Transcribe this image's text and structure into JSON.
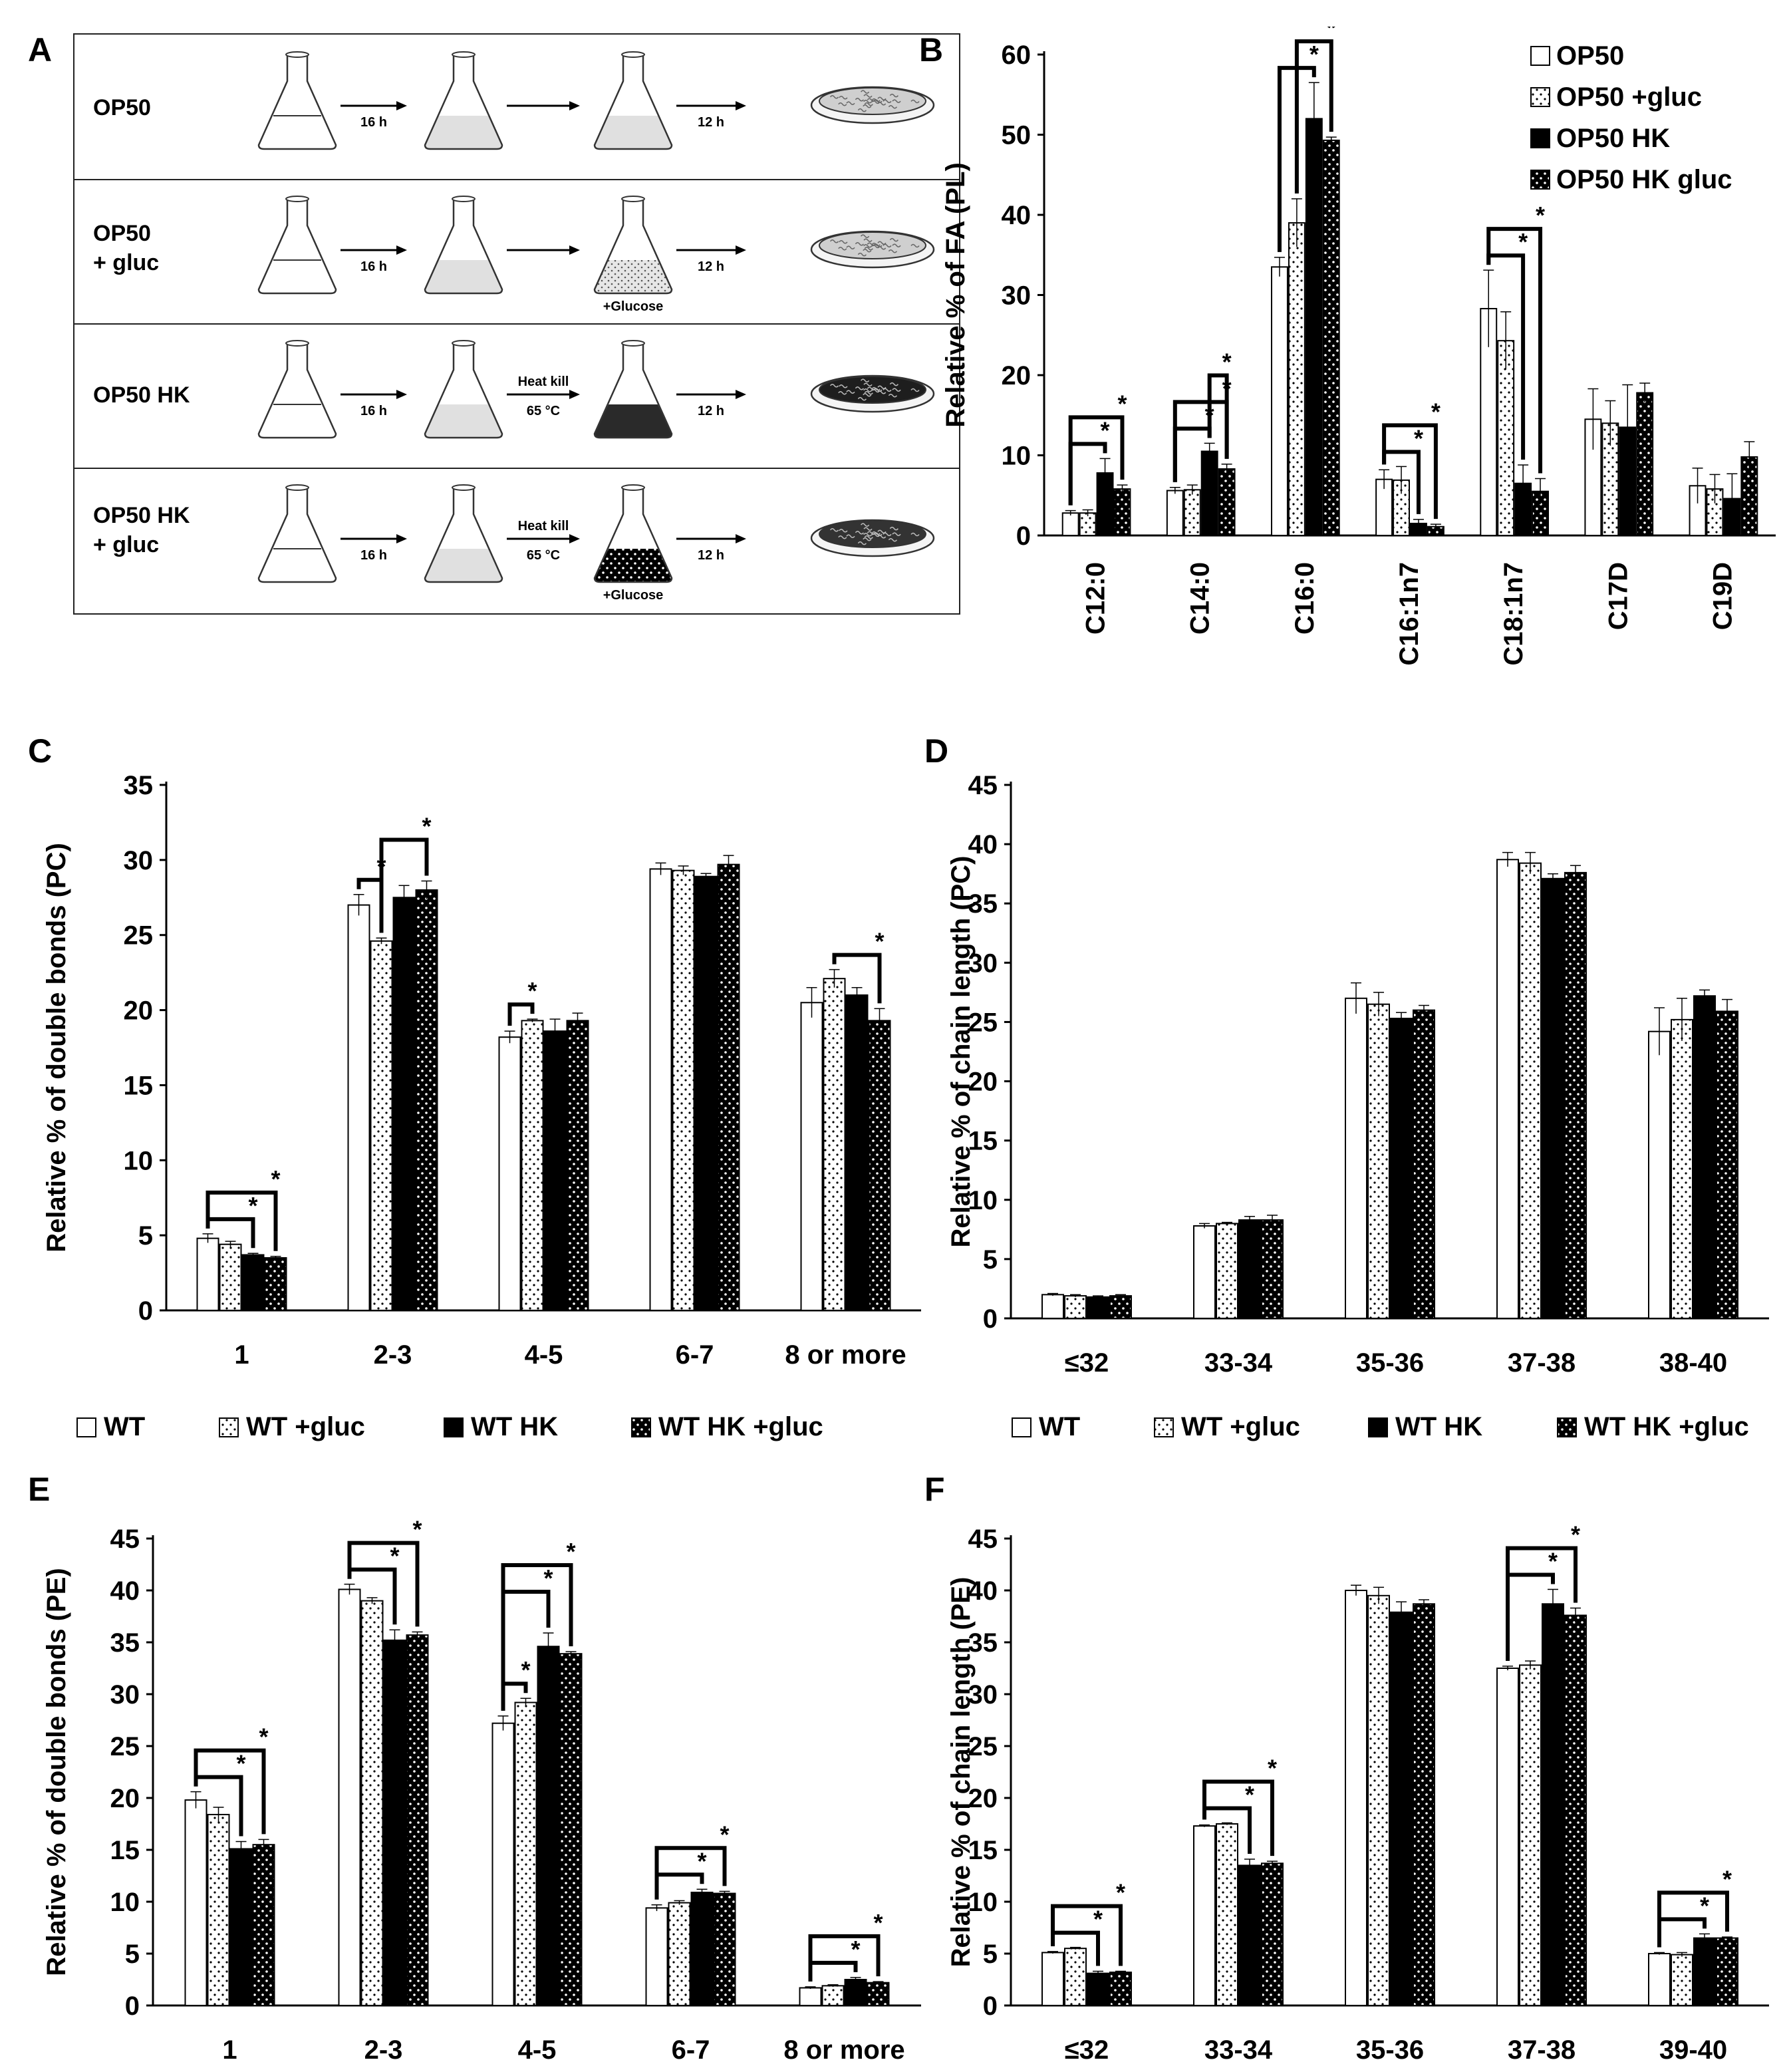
{
  "panels": {
    "A": "A",
    "B": "B",
    "C": "C",
    "D": "D",
    "E": "E",
    "F": "F"
  },
  "schematic": {
    "rows": [
      {
        "label": "OP50",
        "steps": [
          "16 h",
          "",
          "12 h"
        ],
        "heat_kill": null,
        "add": null,
        "liquid": "light",
        "plate": "light"
      },
      {
        "label": "OP50\n+ gluc",
        "steps": [
          "16 h",
          "",
          "12 h"
        ],
        "heat_kill": null,
        "add": "+Glucose",
        "liquid": "dotted",
        "plate": "light"
      },
      {
        "label": "OP50 HK",
        "steps": [
          "16 h",
          "",
          "12 h"
        ],
        "heat_kill": [
          "Heat kill",
          "65 °C"
        ],
        "add": null,
        "liquid": "dark",
        "plate": "dark"
      },
      {
        "label": "OP50 HK\n+ gluc",
        "steps": [
          "16 h",
          "",
          "12 h"
        ],
        "heat_kill": [
          "Heat kill",
          "65 °C"
        ],
        "add": "+Glucose",
        "liquid": "darkdots",
        "plate": "darkdots"
      }
    ]
  },
  "legends": {
    "op50": [
      "OP50",
      "OP50 +gluc",
      "OP50 HK",
      "OP50 HK gluc"
    ],
    "wt": [
      "WT",
      "WT +gluc",
      "WT HK",
      "WT HK +gluc"
    ]
  },
  "chart_data": [
    {
      "panel": "B",
      "type": "bar",
      "ylabel": "Relative % of FA (PL)",
      "ylim": [
        0,
        60
      ],
      "yticks": [
        0,
        10,
        20,
        30,
        40,
        50,
        60
      ],
      "categories": [
        "C12:0",
        "C14:0",
        "C16:0",
        "C16:1n7",
        "C18:1n7",
        "C17D",
        "C19D"
      ],
      "series": [
        {
          "name": "OP50",
          "values": [
            2.8,
            5.6,
            33.5,
            7.0,
            28.3,
            14.5,
            6.2
          ],
          "errors": [
            0.3,
            0.4,
            1.2,
            1.2,
            4.8,
            3.8,
            2.2
          ]
        },
        {
          "name": "OP50 +gluc",
          "values": [
            2.8,
            5.7,
            39.0,
            6.9,
            24.3,
            14.0,
            5.8
          ],
          "errors": [
            0.4,
            0.6,
            3.0,
            1.7,
            3.6,
            2.8,
            1.8
          ]
        },
        {
          "name": "OP50 HK",
          "values": [
            7.8,
            10.5,
            52.0,
            1.5,
            6.5,
            13.5,
            4.6
          ],
          "errors": [
            1.8,
            1.0,
            4.5,
            0.5,
            2.3,
            5.3,
            3.1
          ]
        },
        {
          "name": "OP50 HK gluc",
          "values": [
            5.8,
            8.3,
            49.3,
            1.1,
            5.5,
            17.8,
            9.8
          ],
          "errors": [
            0.5,
            0.6,
            0.4,
            0.3,
            1.6,
            1.2,
            1.9
          ]
        }
      ],
      "significance": [
        {
          "cat": 0,
          "from": 0,
          "to": 2,
          "label": "*"
        },
        {
          "cat": 0,
          "from": 0,
          "to": 3,
          "label": "*"
        },
        {
          "cat": 1,
          "from": 0,
          "to": 2,
          "label": "*"
        },
        {
          "cat": 1,
          "from": 0,
          "to": 3,
          "label": "*"
        },
        {
          "cat": 1,
          "from": 2,
          "to": 3,
          "label": "*"
        },
        {
          "cat": 2,
          "from": 0,
          "to": 2,
          "label": "*"
        },
        {
          "cat": 2,
          "from": 1,
          "to": 3,
          "label": "*"
        },
        {
          "cat": 3,
          "from": 0,
          "to": 2,
          "label": "*"
        },
        {
          "cat": 3,
          "from": 0,
          "to": 3,
          "label": "*"
        },
        {
          "cat": 4,
          "from": 0,
          "to": 2,
          "label": "*"
        },
        {
          "cat": 4,
          "from": 0,
          "to": 3,
          "label": "*"
        }
      ]
    },
    {
      "panel": "C",
      "type": "bar",
      "ylabel": "Relative % of double bonds (PC)",
      "ylim": [
        0,
        35
      ],
      "yticks": [
        0,
        5,
        10,
        15,
        20,
        25,
        30,
        35
      ],
      "categories": [
        "1",
        "2-3",
        "4-5",
        "6-7",
        "8 or more"
      ],
      "series": [
        {
          "name": "WT",
          "values": [
            4.8,
            27.0,
            18.2,
            29.4,
            20.5
          ],
          "errors": [
            0.3,
            0.7,
            0.4,
            0.4,
            1.0
          ]
        },
        {
          "name": "WT +gluc",
          "values": [
            4.4,
            24.6,
            19.3,
            29.3,
            22.1
          ],
          "errors": [
            0.2,
            0.2,
            0.1,
            0.3,
            0.6
          ]
        },
        {
          "name": "WT HK",
          "values": [
            3.7,
            27.5,
            18.6,
            28.9,
            21.0
          ],
          "errors": [
            0.1,
            0.8,
            0.8,
            0.2,
            0.5
          ]
        },
        {
          "name": "WT HK +gluc",
          "values": [
            3.5,
            28.0,
            19.3,
            29.7,
            19.3
          ],
          "errors": [
            0.1,
            0.6,
            0.5,
            0.6,
            0.8
          ]
        }
      ],
      "significance": [
        {
          "cat": 0,
          "from": 0,
          "to": 2,
          "label": "*"
        },
        {
          "cat": 0,
          "from": 0,
          "to": 3,
          "label": "*"
        },
        {
          "cat": 1,
          "from": 0,
          "to": 1,
          "label": "*"
        },
        {
          "cat": 1,
          "from": 1,
          "to": 3,
          "label": "*"
        },
        {
          "cat": 2,
          "from": 0,
          "to": 1,
          "label": "*"
        },
        {
          "cat": 4,
          "from": 1,
          "to": 3,
          "label": "*"
        }
      ]
    },
    {
      "panel": "D",
      "type": "bar",
      "ylabel": "Relative % of chain length (PC)",
      "ylim": [
        0,
        45
      ],
      "yticks": [
        0,
        5,
        10,
        15,
        20,
        25,
        30,
        35,
        40,
        45
      ],
      "categories": [
        "≤32",
        "33-34",
        "35-36",
        "37-38",
        "38-40"
      ],
      "series": [
        {
          "name": "WT",
          "values": [
            2.0,
            7.8,
            27.0,
            38.7,
            24.2
          ],
          "errors": [
            0.1,
            0.2,
            1.3,
            0.6,
            2.0
          ]
        },
        {
          "name": "WT +gluc",
          "values": [
            1.9,
            8.0,
            26.5,
            38.4,
            25.2
          ],
          "errors": [
            0.1,
            0.1,
            1.0,
            0.9,
            1.8
          ]
        },
        {
          "name": "WT HK",
          "values": [
            1.8,
            8.3,
            25.3,
            37.1,
            27.2
          ],
          "errors": [
            0.1,
            0.3,
            0.5,
            0.4,
            0.5
          ]
        },
        {
          "name": "WT HK +gluc",
          "values": [
            1.9,
            8.3,
            26.0,
            37.6,
            25.9
          ],
          "errors": [
            0.1,
            0.4,
            0.4,
            0.6,
            1.0
          ]
        }
      ],
      "significance": []
    },
    {
      "panel": "E",
      "type": "bar",
      "ylabel": "Relative % of double bonds (PE)",
      "ylim": [
        0,
        45
      ],
      "yticks": [
        0,
        5,
        10,
        15,
        20,
        25,
        30,
        35,
        40,
        45
      ],
      "categories": [
        "1",
        "2-3",
        "4-5",
        "6-7",
        "8 or more"
      ],
      "series": [
        {
          "name": "WT",
          "values": [
            19.8,
            40.1,
            27.2,
            9.4,
            1.7
          ],
          "errors": [
            0.8,
            0.5,
            0.7,
            0.3,
            0.1
          ]
        },
        {
          "name": "WT +gluc",
          "values": [
            18.4,
            39.0,
            29.2,
            9.9,
            1.9
          ],
          "errors": [
            0.7,
            0.3,
            0.4,
            0.2,
            0.1
          ]
        },
        {
          "name": "WT HK",
          "values": [
            15.1,
            35.2,
            34.6,
            10.9,
            2.5
          ],
          "errors": [
            0.7,
            1.0,
            1.3,
            0.3,
            0.2
          ]
        },
        {
          "name": "WT HK +gluc",
          "values": [
            15.5,
            35.7,
            33.9,
            10.8,
            2.2
          ],
          "errors": [
            0.5,
            0.3,
            0.2,
            0.2,
            0.1
          ]
        }
      ],
      "significance": [
        {
          "cat": 0,
          "from": 0,
          "to": 2,
          "label": "*"
        },
        {
          "cat": 0,
          "from": 0,
          "to": 3,
          "label": "*"
        },
        {
          "cat": 1,
          "from": 0,
          "to": 2,
          "label": "*"
        },
        {
          "cat": 1,
          "from": 0,
          "to": 3,
          "label": "*"
        },
        {
          "cat": 2,
          "from": 0,
          "to": 1,
          "label": "*"
        },
        {
          "cat": 2,
          "from": 0,
          "to": 2,
          "label": "*"
        },
        {
          "cat": 2,
          "from": 0,
          "to": 3,
          "label": "*"
        },
        {
          "cat": 3,
          "from": 0,
          "to": 2,
          "label": "*"
        },
        {
          "cat": 3,
          "from": 0,
          "to": 3,
          "label": "*"
        },
        {
          "cat": 4,
          "from": 0,
          "to": 2,
          "label": "*"
        },
        {
          "cat": 4,
          "from": 0,
          "to": 3,
          "label": "*"
        }
      ]
    },
    {
      "panel": "F",
      "type": "bar",
      "ylabel": "Relative % of chain length (PE)",
      "ylim": [
        0,
        45
      ],
      "yticks": [
        0,
        5,
        10,
        15,
        20,
        25,
        30,
        35,
        40,
        45
      ],
      "categories": [
        "≤32",
        "33-34",
        "35-36",
        "37-38",
        "39-40"
      ],
      "series": [
        {
          "name": "WT",
          "values": [
            5.1,
            17.3,
            40.0,
            32.5,
            5.0
          ],
          "errors": [
            0.1,
            0.1,
            0.5,
            0.2,
            0.1
          ]
        },
        {
          "name": "WT +gluc",
          "values": [
            5.5,
            17.5,
            39.5,
            32.8,
            4.9
          ],
          "errors": [
            0.1,
            0.1,
            0.8,
            0.4,
            0.2
          ]
        },
        {
          "name": "WT HK",
          "values": [
            3.1,
            13.5,
            37.9,
            38.7,
            6.5
          ],
          "errors": [
            0.2,
            0.6,
            1.0,
            1.4,
            0.4
          ]
        },
        {
          "name": "WT HK +gluc",
          "values": [
            3.2,
            13.7,
            38.7,
            37.6,
            6.5
          ],
          "errors": [
            0.1,
            0.2,
            0.4,
            0.7,
            0.1
          ]
        }
      ],
      "significance": [
        {
          "cat": 0,
          "from": 0,
          "to": 2,
          "label": "*"
        },
        {
          "cat": 0,
          "from": 0,
          "to": 3,
          "label": "*"
        },
        {
          "cat": 1,
          "from": 0,
          "to": 2,
          "label": "*"
        },
        {
          "cat": 1,
          "from": 0,
          "to": 3,
          "label": "*"
        },
        {
          "cat": 3,
          "from": 0,
          "to": 2,
          "label": "*"
        },
        {
          "cat": 3,
          "from": 0,
          "to": 3,
          "label": "*"
        },
        {
          "cat": 4,
          "from": 0,
          "to": 2,
          "label": "*"
        },
        {
          "cat": 4,
          "from": 0,
          "to": 3,
          "label": "*"
        }
      ]
    }
  ]
}
